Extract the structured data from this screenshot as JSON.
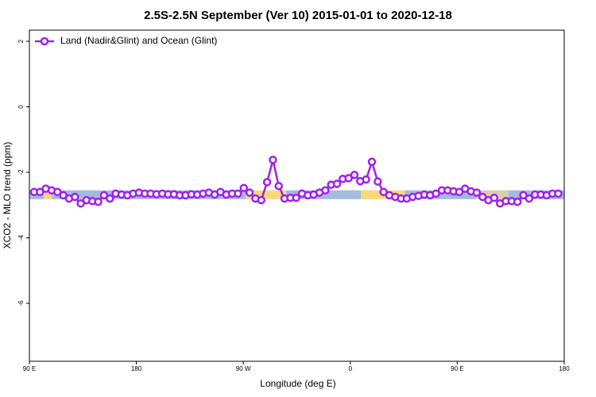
{
  "chart_data": {
    "type": "line",
    "title": "2.5S-2.5N September (Ver 10)   2015-01-01 to 2020-12-18",
    "xlabel": "Longitude (deg E)",
    "ylabel": "XCO2 - MLO trend (ppm)",
    "xlim": [
      90,
      540
    ],
    "ylim": [
      -7.77,
      2.34
    ],
    "xticks": [
      {
        "value": 90,
        "label": "90 E"
      },
      {
        "value": 180,
        "label": "180"
      },
      {
        "value": 270,
        "label": "90 W"
      },
      {
        "value": 360,
        "label": "0"
      },
      {
        "value": 450,
        "label": "90 E"
      },
      {
        "value": 540,
        "label": "180"
      }
    ],
    "yticks": [
      2,
      0,
      -2,
      -4,
      -6
    ],
    "legend": "top-left",
    "band": {
      "y": [
        -2.82,
        -2.55
      ],
      "segments": [
        {
          "x": [
            90,
            102
          ],
          "color": "#a3bbdc"
        },
        {
          "x": [
            102,
            109
          ],
          "color": "#f9d77c"
        },
        {
          "x": [
            109,
            272
          ],
          "color": "#a3bbdc"
        },
        {
          "x": [
            272,
            306
          ],
          "color": "#fcd878"
        },
        {
          "x": [
            306,
            369
          ],
          "color": "#a3bbdc"
        },
        {
          "x": [
            369,
            406
          ],
          "color": "#fcd878"
        },
        {
          "x": [
            406,
            466
          ],
          "color": "#a3bbdc"
        },
        {
          "x": [
            466,
            493
          ],
          "color": "#d9cfa8"
        },
        {
          "x": [
            493,
            540
          ],
          "color": "#a3bbdc"
        }
      ]
    },
    "x": [
      94,
      98.9,
      103.8,
      108.7,
      113.6,
      118.5,
      123.4,
      128.3,
      133.2,
      138.1,
      143,
      147.9,
      152.8,
      157.7,
      162.6,
      167.5,
      172.4,
      177.3,
      182.2,
      187.1,
      192,
      196.9,
      201.8,
      206.7,
      211.6,
      216.5,
      221.4,
      226.3,
      231.2,
      236.1,
      241,
      245.9,
      250.8,
      255.7,
      260.6,
      265.5,
      270.4,
      275.3,
      280.2,
      285.1,
      290,
      294.9,
      299.8,
      304.7,
      309.6,
      314.5,
      319.4,
      324.3,
      329.2,
      334.1,
      339,
      343.9,
      348.8,
      353.7,
      358.6,
      363.5,
      368.4,
      373.3,
      378.2,
      383.1,
      388,
      392.9,
      397.8,
      402.7,
      407.6,
      412.5,
      417.4,
      422.3,
      427.2,
      432.1,
      437,
      441.9,
      446.8,
      451.7,
      456.6,
      461.5,
      466.4,
      471.3,
      476.2,
      481.1,
      486,
      490.9,
      495.8,
      500.7,
      505.6,
      510.5,
      515.4,
      520.3,
      525.2,
      530.1,
      535
    ],
    "series": [
      {
        "name": "Land (Nadir&Glint) and Ocean (Glint)",
        "color": "#a020f0",
        "values": [
          -2.6,
          -2.6,
          -2.5,
          -2.55,
          -2.6,
          -2.7,
          -2.8,
          -2.75,
          -2.95,
          -2.85,
          -2.88,
          -2.9,
          -2.7,
          -2.8,
          -2.65,
          -2.68,
          -2.7,
          -2.65,
          -2.62,
          -2.65,
          -2.65,
          -2.67,
          -2.65,
          -2.67,
          -2.67,
          -2.7,
          -2.7,
          -2.67,
          -2.68,
          -2.65,
          -2.62,
          -2.68,
          -2.6,
          -2.68,
          -2.65,
          -2.65,
          -2.48,
          -2.62,
          -2.8,
          -2.85,
          -2.3,
          -1.62,
          -2.42,
          -2.8,
          -2.78,
          -2.78,
          -2.65,
          -2.7,
          -2.68,
          -2.62,
          -2.55,
          -2.38,
          -2.35,
          -2.2,
          -2.18,
          -2.08,
          -2.27,
          -2.22,
          -1.68,
          -2.28,
          -2.6,
          -2.7,
          -2.75,
          -2.8,
          -2.8,
          -2.75,
          -2.72,
          -2.68,
          -2.7,
          -2.65,
          -2.55,
          -2.55,
          -2.58,
          -2.6,
          -2.5,
          -2.58,
          -2.62,
          -2.75,
          -2.85,
          -2.78,
          -2.95,
          -2.88,
          -2.88,
          -2.9,
          -2.7,
          -2.8,
          -2.68,
          -2.68,
          -2.7,
          -2.65,
          -2.65
        ]
      }
    ]
  }
}
